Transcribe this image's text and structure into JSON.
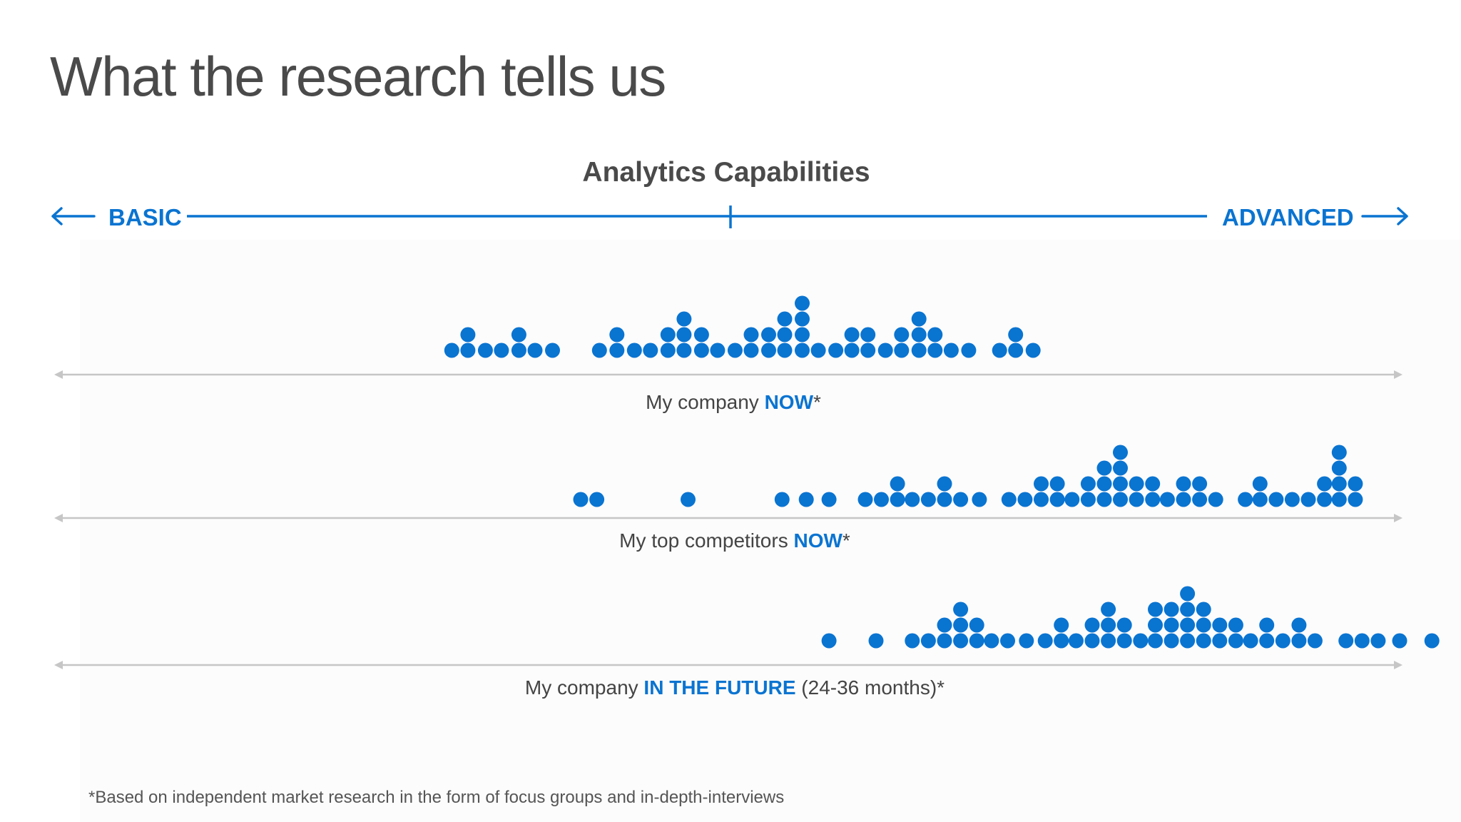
{
  "slide": {
    "title": "What the research tells us",
    "footnote": "*Based on independent market research in the form of focus groups and in-depth-interviews"
  },
  "colors": {
    "accent": "#0a74d1",
    "text": "#4a4a4a",
    "axis_line": "#c6c6c6"
  },
  "chart_data": {
    "type": "scatter",
    "subtype": "dot-plot",
    "title": "Analytics Capabilities",
    "axis": {
      "left_label": "BASIC",
      "right_label": "ADVANCED",
      "range": [
        0,
        100
      ],
      "midpoint_tick": 50
    },
    "series": [
      {
        "label_parts": [
          "My company ",
          "NOW",
          "*"
        ],
        "columns": [
          {
            "x": 29.4,
            "count": 1
          },
          {
            "x": 30.6,
            "count": 2
          },
          {
            "x": 31.9,
            "count": 1
          },
          {
            "x": 33.1,
            "count": 1
          },
          {
            "x": 34.4,
            "count": 2
          },
          {
            "x": 35.6,
            "count": 1
          },
          {
            "x": 36.9,
            "count": 1
          },
          {
            "x": 40.4,
            "count": 1
          },
          {
            "x": 41.7,
            "count": 2
          },
          {
            "x": 43.0,
            "count": 1
          },
          {
            "x": 44.2,
            "count": 1
          },
          {
            "x": 45.5,
            "count": 2
          },
          {
            "x": 46.7,
            "count": 3
          },
          {
            "x": 48.0,
            "count": 2
          },
          {
            "x": 49.2,
            "count": 1
          },
          {
            "x": 50.5,
            "count": 1
          },
          {
            "x": 51.7,
            "count": 2
          },
          {
            "x": 53.0,
            "count": 2
          },
          {
            "x": 54.2,
            "count": 3
          },
          {
            "x": 55.5,
            "count": 4
          },
          {
            "x": 56.7,
            "count": 1
          },
          {
            "x": 58.0,
            "count": 1
          },
          {
            "x": 59.2,
            "count": 2
          },
          {
            "x": 60.4,
            "count": 2
          },
          {
            "x": 61.7,
            "count": 1
          },
          {
            "x": 62.9,
            "count": 2
          },
          {
            "x": 64.2,
            "count": 3
          },
          {
            "x": 65.4,
            "count": 2
          },
          {
            "x": 66.6,
            "count": 1
          },
          {
            "x": 67.9,
            "count": 1
          },
          {
            "x": 70.2,
            "count": 1
          },
          {
            "x": 71.4,
            "count": 2
          },
          {
            "x": 72.7,
            "count": 1
          }
        ]
      },
      {
        "label_parts": [
          "My top competitors ",
          "NOW",
          "*"
        ],
        "columns": [
          {
            "x": 39.0,
            "count": 1
          },
          {
            "x": 40.2,
            "count": 1
          },
          {
            "x": 47.0,
            "count": 1
          },
          {
            "x": 54.0,
            "count": 1
          },
          {
            "x": 55.8,
            "count": 1
          },
          {
            "x": 57.5,
            "count": 1
          },
          {
            "x": 60.2,
            "count": 1
          },
          {
            "x": 61.4,
            "count": 1
          },
          {
            "x": 62.6,
            "count": 2
          },
          {
            "x": 63.7,
            "count": 1
          },
          {
            "x": 64.9,
            "count": 1
          },
          {
            "x": 66.1,
            "count": 2
          },
          {
            "x": 67.3,
            "count": 1
          },
          {
            "x": 68.7,
            "count": 1
          },
          {
            "x": 70.9,
            "count": 1
          },
          {
            "x": 72.1,
            "count": 1
          },
          {
            "x": 73.3,
            "count": 2
          },
          {
            "x": 74.5,
            "count": 2
          },
          {
            "x": 75.6,
            "count": 1
          },
          {
            "x": 76.8,
            "count": 2
          },
          {
            "x": 78.0,
            "count": 3
          },
          {
            "x": 79.2,
            "count": 4
          },
          {
            "x": 80.4,
            "count": 2
          },
          {
            "x": 81.6,
            "count": 2
          },
          {
            "x": 82.7,
            "count": 1
          },
          {
            "x": 83.9,
            "count": 2
          },
          {
            "x": 85.1,
            "count": 2
          },
          {
            "x": 86.3,
            "count": 1
          },
          {
            "x": 88.5,
            "count": 1
          },
          {
            "x": 89.6,
            "count": 2
          },
          {
            "x": 90.8,
            "count": 1
          },
          {
            "x": 92.0,
            "count": 1
          },
          {
            "x": 93.2,
            "count": 1
          },
          {
            "x": 94.4,
            "count": 2
          },
          {
            "x": 95.5,
            "count": 4
          },
          {
            "x": 96.7,
            "count": 2
          }
        ]
      },
      {
        "label_parts": [
          "My company ",
          "IN THE FUTURE",
          " (24-36 months)*"
        ],
        "columns": [
          {
            "x": 57.5,
            "count": 1
          },
          {
            "x": 61.0,
            "count": 1
          },
          {
            "x": 63.7,
            "count": 1
          },
          {
            "x": 64.9,
            "count": 1
          },
          {
            "x": 66.1,
            "count": 2
          },
          {
            "x": 67.3,
            "count": 3
          },
          {
            "x": 68.5,
            "count": 2
          },
          {
            "x": 69.6,
            "count": 1
          },
          {
            "x": 70.8,
            "count": 1
          },
          {
            "x": 72.2,
            "count": 1
          },
          {
            "x": 73.6,
            "count": 1
          },
          {
            "x": 74.8,
            "count": 2
          },
          {
            "x": 75.9,
            "count": 1
          },
          {
            "x": 77.1,
            "count": 2
          },
          {
            "x": 78.3,
            "count": 3
          },
          {
            "x": 79.5,
            "count": 2
          },
          {
            "x": 80.7,
            "count": 1
          },
          {
            "x": 81.8,
            "count": 3
          },
          {
            "x": 83.0,
            "count": 3
          },
          {
            "x": 84.2,
            "count": 4
          },
          {
            "x": 85.4,
            "count": 3
          },
          {
            "x": 86.6,
            "count": 2
          },
          {
            "x": 87.8,
            "count": 2
          },
          {
            "x": 88.9,
            "count": 1
          },
          {
            "x": 90.1,
            "count": 2
          },
          {
            "x": 91.3,
            "count": 1
          },
          {
            "x": 92.5,
            "count": 2
          },
          {
            "x": 93.7,
            "count": 1
          },
          {
            "x": 96.0,
            "count": 1
          },
          {
            "x": 97.2,
            "count": 1
          },
          {
            "x": 98.4,
            "count": 1
          },
          {
            "x": 100.0,
            "count": 1
          },
          {
            "x": 102.4,
            "count": 1
          }
        ]
      }
    ]
  }
}
